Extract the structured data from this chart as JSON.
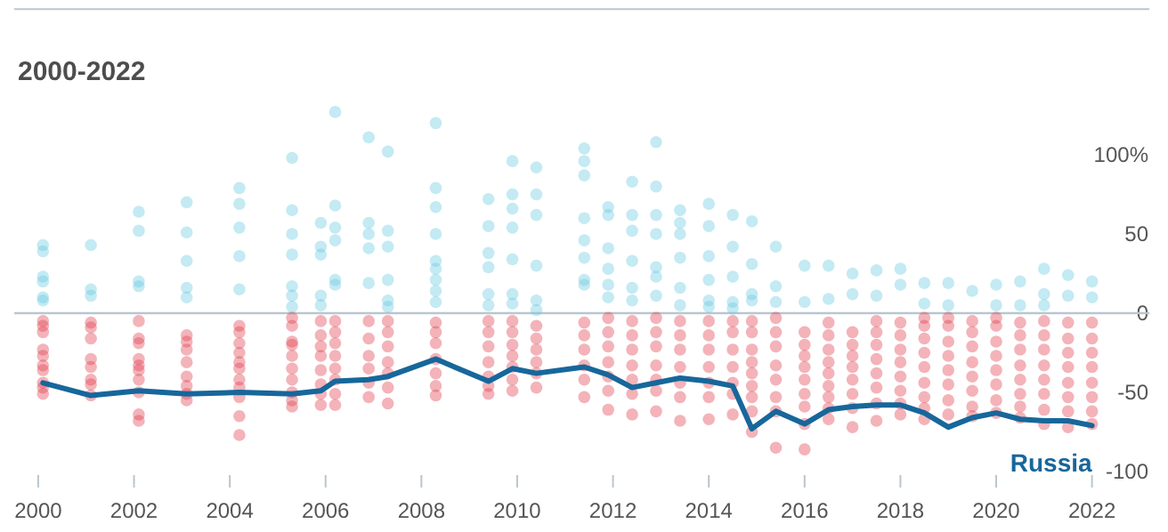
{
  "chart_data": {
    "type": "scatter",
    "title": "2000-2022",
    "xlim": [
      1999.5,
      2023.2
    ],
    "xticks": [
      2000,
      2002,
      2004,
      2006,
      2008,
      2010,
      2012,
      2014,
      2016,
      2018,
      2020,
      2022
    ],
    "ylim": [
      -100,
      192
    ],
    "yticks": [
      {
        "value": 100,
        "label": "100%"
      },
      50,
      0,
      -50,
      -100
    ],
    "ref_lines": [
      {
        "axis": "y",
        "value": 0,
        "color": "#b9c6cf"
      }
    ],
    "series": [
      {
        "color": "#6ccbe2",
        "x": [
          2000.1,
          2000.1,
          2000.1,
          2000.1,
          2000.1,
          2000.1,
          2001.1,
          2001.1,
          2001.1,
          2002.1,
          2002.1,
          2002.1,
          2002.1,
          2003.1,
          2003.1,
          2003.1,
          2003.1,
          2003.1,
          2004.2,
          2004.2,
          2004.2,
          2004.2,
          2004.2,
          2005.3,
          2005.3,
          2005.3,
          2005.3,
          2005.3,
          2005.3,
          2005.3,
          2005.9,
          2005.9,
          2005.9,
          2005.9,
          2005.9,
          2006.2,
          2006.2,
          2006.2,
          2006.2,
          2006.2,
          2006.2,
          2006.9,
          2006.9,
          2006.9,
          2006.9,
          2006.9,
          2007.3,
          2007.3,
          2007.3,
          2007.3,
          2007.3,
          2007.3,
          2008.3,
          2008.3,
          2008.3,
          2008.3,
          2008.3,
          2008.3,
          2008.3,
          2008.3,
          2008.3,
          2009.4,
          2009.4,
          2009.4,
          2009.4,
          2009.4,
          2009.4,
          2009.9,
          2009.9,
          2009.9,
          2009.9,
          2009.9,
          2009.9,
          2009.9,
          2010.4,
          2010.4,
          2010.4,
          2010.4,
          2010.4,
          2010.4,
          2011.4,
          2011.4,
          2011.4,
          2011.4,
          2011.4,
          2011.4,
          2011.4,
          2011.4,
          2011.9,
          2011.9,
          2011.9,
          2011.9,
          2011.9,
          2011.9,
          2012.4,
          2012.4,
          2012.4,
          2012.4,
          2012.4,
          2012.4,
          2012.9,
          2012.9,
          2012.9,
          2012.9,
          2012.9,
          2012.9,
          2012.9,
          2013.4,
          2013.4,
          2013.4,
          2013.4,
          2013.4,
          2013.4,
          2014.0,
          2014.0,
          2014.0,
          2014.0,
          2014.0,
          2014.0,
          2014.5,
          2014.5,
          2014.5,
          2014.5,
          2014.5,
          2014.9,
          2014.9,
          2014.9,
          2014.9,
          2015.4,
          2015.4,
          2015.4,
          2016.0,
          2016.0,
          2016.5,
          2016.5,
          2017.0,
          2017.0,
          2017.5,
          2017.5,
          2018.0,
          2018.0,
          2018.5,
          2018.5,
          2019.0,
          2019.0,
          2019.5,
          2020.0,
          2020.0,
          2020.5,
          2020.5,
          2021.0,
          2021.0,
          2021.0,
          2021.5,
          2021.5,
          2022.0,
          2022.0
        ],
        "values": [
          43,
          39,
          23,
          20,
          10,
          8,
          43,
          15,
          11,
          64,
          52,
          20,
          17,
          70,
          51,
          33,
          16,
          10,
          79,
          69,
          54,
          36,
          15,
          98,
          65,
          50,
          37,
          17,
          11,
          4,
          57,
          42,
          37,
          11,
          5,
          127,
          68,
          54,
          46,
          21,
          18,
          111,
          57,
          50,
          41,
          19,
          102,
          52,
          42,
          21,
          8,
          4,
          120,
          79,
          67,
          50,
          33,
          28,
          21,
          14,
          7,
          72,
          55,
          38,
          29,
          12,
          5,
          96,
          75,
          66,
          54,
          34,
          12,
          6,
          92,
          75,
          62,
          30,
          8,
          2,
          104,
          96,
          87,
          60,
          46,
          35,
          21,
          18,
          67,
          62,
          41,
          28,
          18,
          10,
          83,
          62,
          52,
          33,
          16,
          8,
          108,
          80,
          62,
          50,
          29,
          23,
          11,
          65,
          57,
          50,
          35,
          16,
          5,
          69,
          55,
          36,
          21,
          8,
          4,
          62,
          42,
          23,
          7,
          3,
          58,
          31,
          12,
          8,
          42,
          17,
          7,
          30,
          7,
          30,
          9,
          25,
          12,
          27,
          11,
          28,
          18,
          19,
          6,
          19,
          5,
          14,
          18,
          5,
          20,
          5,
          28,
          12,
          5,
          24,
          11,
          20,
          10
        ]
      },
      {
        "color": "#e0404f",
        "x": [
          2000.1,
          2000.1,
          2000.1,
          2000.1,
          2000.1,
          2000.1,
          2000.1,
          2000.1,
          2000.1,
          2000.1,
          2001.1,
          2001.1,
          2001.1,
          2001.1,
          2001.1,
          2001.1,
          2001.1,
          2001.1,
          2002.1,
          2002.1,
          2002.1,
          2002.1,
          2002.1,
          2002.1,
          2002.1,
          2002.1,
          2002.1,
          2002.1,
          2003.1,
          2003.1,
          2003.1,
          2003.1,
          2003.1,
          2003.1,
          2003.1,
          2003.1,
          2004.2,
          2004.2,
          2004.2,
          2004.2,
          2004.2,
          2004.2,
          2004.2,
          2004.2,
          2004.2,
          2004.2,
          2004.2,
          2005.3,
          2005.3,
          2005.3,
          2005.3,
          2005.3,
          2005.3,
          2005.3,
          2005.3,
          2005.3,
          2005.3,
          2005.9,
          2005.9,
          2005.9,
          2005.9,
          2005.9,
          2005.9,
          2005.9,
          2005.9,
          2006.2,
          2006.2,
          2006.2,
          2006.2,
          2006.2,
          2006.2,
          2006.2,
          2006.2,
          2006.9,
          2006.9,
          2006.9,
          2006.9,
          2006.9,
          2006.9,
          2007.3,
          2007.3,
          2007.3,
          2007.3,
          2007.3,
          2007.3,
          2007.3,
          2008.3,
          2008.3,
          2008.3,
          2008.3,
          2008.3,
          2008.3,
          2008.3,
          2009.4,
          2009.4,
          2009.4,
          2009.4,
          2009.4,
          2009.4,
          2009.4,
          2009.9,
          2009.9,
          2009.9,
          2009.9,
          2009.9,
          2009.9,
          2009.9,
          2010.4,
          2010.4,
          2010.4,
          2010.4,
          2010.4,
          2010.4,
          2011.4,
          2011.4,
          2011.4,
          2011.4,
          2011.4,
          2011.4,
          2011.9,
          2011.9,
          2011.9,
          2011.9,
          2011.9,
          2011.9,
          2011.9,
          2012.4,
          2012.4,
          2012.4,
          2012.4,
          2012.4,
          2012.4,
          2012.4,
          2012.9,
          2012.9,
          2012.9,
          2012.9,
          2012.9,
          2012.9,
          2012.9,
          2013.4,
          2013.4,
          2013.4,
          2013.4,
          2013.4,
          2013.4,
          2013.4,
          2014.0,
          2014.0,
          2014.0,
          2014.0,
          2014.0,
          2014.0,
          2014.0,
          2014.5,
          2014.5,
          2014.5,
          2014.5,
          2014.5,
          2014.5,
          2014.5,
          2014.9,
          2014.9,
          2014.9,
          2014.9,
          2014.9,
          2014.9,
          2014.9,
          2014.9,
          2014.9,
          2015.4,
          2015.4,
          2015.4,
          2015.4,
          2015.4,
          2015.4,
          2015.4,
          2015.4,
          2016.0,
          2016.0,
          2016.0,
          2016.0,
          2016.0,
          2016.0,
          2016.0,
          2016.0,
          2016.0,
          2016.5,
          2016.5,
          2016.5,
          2016.5,
          2016.5,
          2016.5,
          2016.5,
          2016.5,
          2016.5,
          2017.0,
          2017.0,
          2017.0,
          2017.0,
          2017.0,
          2017.0,
          2017.0,
          2017.0,
          2017.5,
          2017.5,
          2017.5,
          2017.5,
          2017.5,
          2017.5,
          2017.5,
          2017.5,
          2018.0,
          2018.0,
          2018.0,
          2018.0,
          2018.0,
          2018.0,
          2018.0,
          2018.0,
          2018.5,
          2018.5,
          2018.5,
          2018.5,
          2018.5,
          2018.5,
          2018.5,
          2018.5,
          2018.5,
          2019.0,
          2019.0,
          2019.0,
          2019.0,
          2019.0,
          2019.0,
          2019.0,
          2019.0,
          2019.5,
          2019.5,
          2019.5,
          2019.5,
          2019.5,
          2019.5,
          2019.5,
          2019.5,
          2020.0,
          2020.0,
          2020.0,
          2020.0,
          2020.0,
          2020.0,
          2020.0,
          2020.0,
          2020.5,
          2020.5,
          2020.5,
          2020.5,
          2020.5,
          2020.5,
          2020.5,
          2020.5,
          2021.0,
          2021.0,
          2021.0,
          2021.0,
          2021.0,
          2021.0,
          2021.0,
          2021.0,
          2021.5,
          2021.5,
          2021.5,
          2021.5,
          2021.5,
          2021.5,
          2021.5,
          2021.5,
          2022.0,
          2022.0,
          2022.0,
          2022.0,
          2022.0,
          2022.0,
          2022.0,
          2022.0
        ],
        "values": [
          -5,
          -8,
          -12,
          -23,
          -27,
          -33,
          -36,
          -44,
          -47,
          -51,
          -6,
          -9,
          -16,
          -29,
          -34,
          -42,
          -45,
          -52,
          -5,
          -16,
          -19,
          -29,
          -33,
          -36,
          -42,
          -50,
          -64,
          -68,
          -14,
          -18,
          -23,
          -31,
          -40,
          -46,
          -51,
          -55,
          -8,
          -12,
          -19,
          -25,
          -31,
          -35,
          -42,
          -47,
          -53,
          -65,
          -77,
          -3,
          -8,
          -18,
          -20,
          -27,
          -35,
          -42,
          -50,
          -55,
          -59,
          -5,
          -14,
          -21,
          -27,
          -36,
          -45,
          -51,
          -58,
          -5,
          -12,
          -19,
          -27,
          -35,
          -42,
          -51,
          -58,
          -5,
          -16,
          -27,
          -35,
          -44,
          -53,
          -5,
          -12,
          -21,
          -31,
          -38,
          -47,
          -57,
          -6,
          -12,
          -19,
          -29,
          -38,
          -46,
          -52,
          -5,
          -12,
          -21,
          -31,
          -40,
          -46,
          -51,
          -5,
          -12,
          -20,
          -27,
          -34,
          -42,
          -49,
          -8,
          -16,
          -23,
          -31,
          -38,
          -47,
          -6,
          -14,
          -23,
          -33,
          -42,
          -53,
          -3,
          -12,
          -21,
          -31,
          -40,
          -49,
          -61,
          -5,
          -14,
          -23,
          -33,
          -42,
          -51,
          -64,
          -3,
          -12,
          -21,
          -33,
          -42,
          -49,
          -62,
          -5,
          -14,
          -23,
          -34,
          -44,
          -53,
          -68,
          -5,
          -14,
          -23,
          -34,
          -44,
          -53,
          -67,
          -5,
          -12,
          -23,
          -34,
          -44,
          -51,
          -64,
          -5,
          -12,
          -23,
          -31,
          -38,
          -46,
          -53,
          -62,
          -75,
          -3,
          -12,
          -21,
          -33,
          -42,
          -53,
          -62,
          -85,
          -12,
          -20,
          -27,
          -34,
          -42,
          -51,
          -59,
          -70,
          -86,
          -6,
          -14,
          -23,
          -31,
          -38,
          -46,
          -53,
          -60,
          -67,
          -12,
          -20,
          -27,
          -34,
          -42,
          -51,
          -60,
          -72,
          -5,
          -12,
          -20,
          -29,
          -38,
          -47,
          -57,
          -68,
          -6,
          -14,
          -23,
          -31,
          -40,
          -49,
          -57,
          -64,
          -3,
          -8,
          -16,
          -25,
          -34,
          -44,
          -53,
          -60,
          -67,
          -3,
          -8,
          -18,
          -27,
          -36,
          -45,
          -55,
          -64,
          -5,
          -12,
          -21,
          -31,
          -40,
          -49,
          -59,
          -65,
          -3,
          -8,
          -18,
          -27,
          -36,
          -45,
          -55,
          -63,
          -6,
          -14,
          -23,
          -33,
          -42,
          -51,
          -59,
          -66,
          -5,
          -14,
          -23,
          -33,
          -42,
          -51,
          -61,
          -70,
          -6,
          -16,
          -25,
          -34,
          -44,
          -53,
          -62,
          -72,
          -6,
          -16,
          -25,
          -34,
          -44,
          -53,
          -62,
          -70
        ]
      },
      {
        "type": "line",
        "name": "Russia",
        "color": "#17679b",
        "x": [
          2000.1,
          2001.1,
          2002.1,
          2003.1,
          2004.2,
          2005.3,
          2005.9,
          2006.2,
          2006.9,
          2007.3,
          2008.3,
          2009.4,
          2009.9,
          2010.4,
          2011.4,
          2011.9,
          2012.4,
          2012.9,
          2013.4,
          2014.0,
          2014.5,
          2014.9,
          2015.4,
          2016.0,
          2016.5,
          2017.0,
          2017.5,
          2018.0,
          2018.5,
          2019.0,
          2019.5,
          2020.0,
          2020.5,
          2021.0,
          2021.5,
          2022.0
        ],
        "values": [
          -44,
          -52,
          -49,
          -51,
          -50,
          -51,
          -49,
          -43,
          -42,
          -40,
          -29,
          -43,
          -35,
          -38,
          -34,
          -39,
          -47,
          -44,
          -41,
          -43,
          -46,
          -73,
          -62,
          -70,
          -61,
          -59,
          -58,
          -58,
          -63,
          -72,
          -66,
          -63,
          -67,
          -68,
          -68,
          -71
        ]
      }
    ]
  }
}
